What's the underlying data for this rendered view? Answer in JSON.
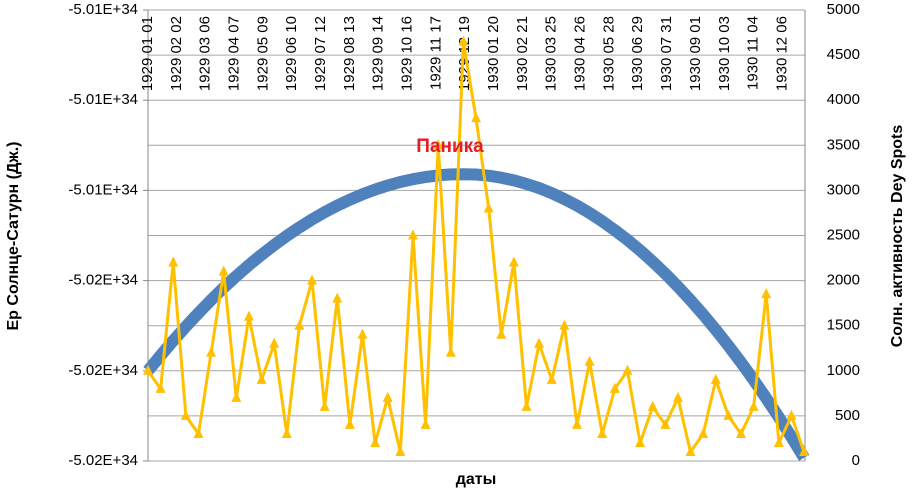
{
  "chart_data": {
    "type": "line",
    "y_label": "Ер Солнце-Сатурн (Дж.)",
    "y2_label": "Солн. активность Dey Spots",
    "x_label": "даты",
    "annotation": "Паника",
    "xlim": [
      "1929 01 01",
      "1930 12 31"
    ],
    "xticks": [
      "1929 01 01",
      "1929 02 02",
      "1929 03 06",
      "1929 04 07",
      "1929 05 09",
      "1929 06 10",
      "1929 07 12",
      "1929 08 13",
      "1929 09 14",
      "1929 10 16",
      "1929 11 17",
      "1929 12 19",
      "1930 01 20",
      "1930 02 21",
      "1930 03 25",
      "1930 04 26",
      "1930 05 28",
      "1930 06 29",
      "1930 07 31",
      "1930 09 01",
      "1930 10 03",
      "1930 11 04",
      "1930 12 06"
    ],
    "ylim": [
      -5.0175e+34,
      -5.0125e+34
    ],
    "yticks": [
      {
        "value": -5.0175e+34,
        "label": "-5.02E+34"
      },
      {
        "value": -5.0165e+34,
        "label": "-5.02E+34"
      },
      {
        "value": -5.0155e+34,
        "label": "-5.02E+34"
      },
      {
        "value": -5.0145e+34,
        "label": "-5.01E+34"
      },
      {
        "value": -5.0135e+34,
        "label": "-5.01E+34"
      },
      {
        "value": -5.0125e+34,
        "label": "-5.01E+34"
      }
    ],
    "y2lim": [
      0,
      5000
    ],
    "y2ticks": [
      0,
      500,
      1000,
      1500,
      2000,
      2500,
      3000,
      3500,
      4000,
      4500,
      5000
    ],
    "grid": true,
    "x": [
      "1929 01 01",
      "1929 01 15",
      "1929 01 29",
      "1929 02 12",
      "1929 02 26",
      "1929 03 12",
      "1929 03 26",
      "1929 04 09",
      "1929 04 23",
      "1929 05 07",
      "1929 05 21",
      "1929 06 04",
      "1929 06 18",
      "1929 07 02",
      "1929 07 16",
      "1929 07 30",
      "1929 08 13",
      "1929 08 27",
      "1929 09 10",
      "1929 09 24",
      "1929 10 08",
      "1929 10 22",
      "1929 11 05",
      "1929 11 19",
      "1929 12 03",
      "1929 12 17",
      "1929 12 31",
      "1930 01 14",
      "1930 01 28",
      "1930 02 11",
      "1930 02 25",
      "1930 03 11",
      "1930 03 25",
      "1930 04 08",
      "1930 04 22",
      "1930 05 06",
      "1930 05 20",
      "1930 06 03",
      "1930 06 17",
      "1930 07 01",
      "1930 07 15",
      "1930 07 29",
      "1930 08 12",
      "1930 08 26",
      "1930 09 09",
      "1930 09 23",
      "1930 10 07",
      "1930 10 21",
      "1930 11 04",
      "1930 11 18",
      "1930 12 02",
      "1930 12 16",
      "1930 12 30"
    ],
    "series": [
      {
        "color": "#4f81bd",
        "marker": "line",
        "values": [
          -5.0165e+34,
          -5.01633e+34,
          -5.016166e+34,
          -5.016009e+34,
          -5.015859e+34,
          -5.015715e+34,
          -5.015579e+34,
          -5.01545e+34,
          -5.015328e+34,
          -5.015213e+34,
          -5.015105e+34,
          -5.015004e+34,
          -5.01491e+34,
          -5.014822e+34,
          -5.014742e+34,
          -5.014669e+34,
          -5.014603e+34,
          -5.014543e+34,
          -5.014491e+34,
          -5.014446e+34,
          -5.014407e+34,
          -5.014376e+34,
          -5.014351e+34,
          -5.014334e+34,
          -5.014323e+34,
          -5.01432e+34,
          -5.014324e+34,
          -5.014337e+34,
          -5.014359e+34,
          -5.014389e+34,
          -5.014428e+34,
          -5.014475e+34,
          -5.014531e+34,
          -5.014596e+34,
          -5.014669e+34,
          -5.014751e+34,
          -5.014842e+34,
          -5.014941e+34,
          -5.015049e+34,
          -5.015165e+34,
          -5.01529e+34,
          -5.015424e+34,
          -5.015566e+34,
          -5.015717e+34,
          -5.015877e+34,
          -5.016045e+34,
          -5.016222e+34,
          -5.016407e+34,
          -5.016601e+34,
          -5.016804e+34,
          -5.017015e+34,
          -5.017235e+34,
          -5.017463e+34
        ]
      },
      {
        "color": "#ffc000",
        "marker": "triangle",
        "axis": "y2",
        "values": [
          1000,
          800,
          2200,
          500,
          300,
          1200,
          2100,
          700,
          1600,
          900,
          1300,
          300,
          1500,
          2000,
          600,
          1800,
          400,
          1400,
          200,
          700,
          100,
          2500,
          400,
          3500,
          1200,
          4650,
          3800,
          2800,
          1400,
          2200,
          600,
          1300,
          900,
          1500,
          400,
          1100,
          300,
          800,
          1000,
          200,
          600,
          400,
          700,
          100,
          300,
          900,
          500,
          300,
          600,
          1850,
          200,
          500,
          100
        ]
      }
    ]
  }
}
